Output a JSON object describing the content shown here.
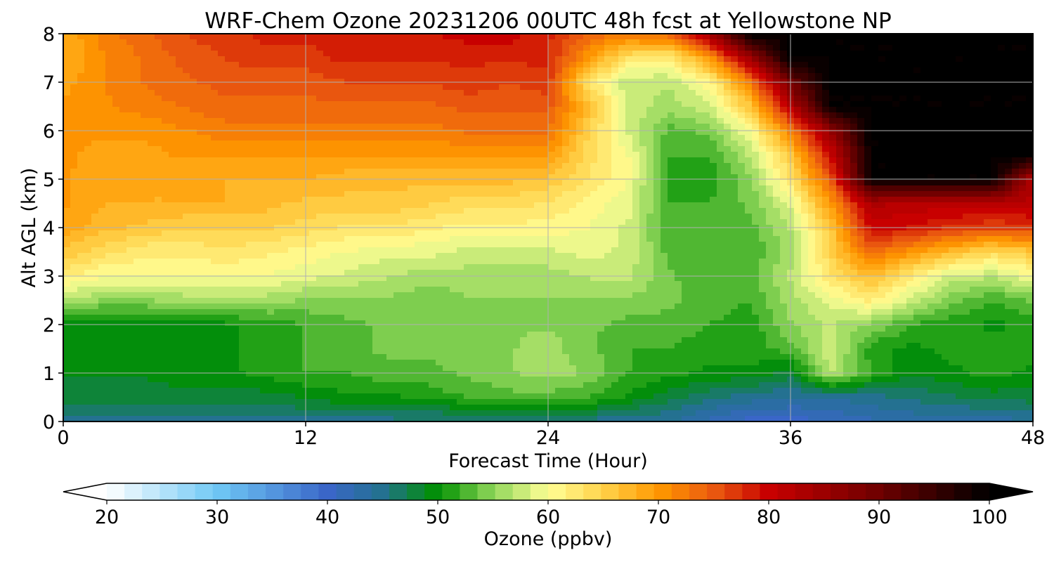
{
  "chart_data": {
    "type": "heatmap",
    "title": "WRF-Chem Ozone  20231206 00UTC 48h fcst at Yellowstone NP",
    "xlabel": "Forecast Time (Hour)",
    "ylabel": "Alt AGL (km)",
    "xlim": [
      0,
      48
    ],
    "ylim": [
      0,
      8
    ],
    "x_ticks": [
      0,
      12,
      24,
      36,
      48
    ],
    "x_tick_labels": [
      "0",
      "12",
      "24",
      "36",
      "48"
    ],
    "y_ticks": [
      0,
      1,
      2,
      3,
      4,
      5,
      6,
      7,
      8
    ],
    "y_tick_labels": [
      "0",
      "1",
      "2",
      "3",
      "4",
      "5",
      "6",
      "7",
      "8"
    ],
    "grid": true,
    "z_hours": [
      0,
      2,
      4,
      6,
      8,
      10,
      12,
      14,
      16,
      18,
      20,
      22,
      24,
      26,
      28,
      30,
      32,
      34,
      36,
      38,
      40,
      42,
      44,
      46,
      48
    ],
    "z_altitudes_km": [
      0,
      0.5,
      1,
      1.5,
      2,
      2.5,
      3,
      3.5,
      4,
      4.5,
      5,
      5.5,
      6,
      6.5,
      7,
      7.5,
      8
    ],
    "z_values_ppbv": [
      [
        45,
        45,
        45,
        45,
        45,
        45,
        45,
        45,
        45,
        45,
        45,
        45,
        45,
        45,
        44,
        44,
        42,
        40,
        40,
        41,
        42,
        43,
        43,
        43,
        44
      ],
      [
        48,
        48,
        48,
        48,
        48,
        48,
        49,
        50,
        50,
        51,
        52,
        53,
        53,
        52,
        50,
        48,
        46,
        45,
        44,
        44,
        45,
        46,
        47,
        48,
        48
      ],
      [
        49,
        49,
        49,
        50,
        50,
        51,
        52,
        52,
        53,
        53,
        54,
        55,
        56,
        55,
        52,
        51,
        50,
        50,
        48,
        57,
        52,
        49,
        50,
        51,
        50
      ],
      [
        49,
        49,
        49,
        50,
        50,
        51,
        52,
        53,
        54,
        54,
        55,
        55,
        56,
        54,
        52,
        52,
        51,
        51,
        53,
        58,
        51,
        50,
        51,
        51,
        51
      ],
      [
        50,
        49,
        49,
        50,
        50,
        51,
        52,
        53,
        54,
        54,
        55,
        55,
        55,
        54,
        53,
        53,
        52,
        51,
        55,
        57,
        55,
        52,
        51,
        50,
        51
      ],
      [
        57,
        55,
        55,
        56,
        56,
        56,
        55,
        55,
        55,
        54,
        55,
        55,
        55,
        55,
        55,
        54,
        53,
        52,
        56,
        59,
        62,
        58,
        54,
        52,
        54
      ],
      [
        62,
        60,
        60,
        60,
        60,
        60,
        59,
        58,
        57,
        56,
        56,
        56,
        56,
        57,
        57,
        54,
        52,
        53,
        57,
        63,
        67,
        62,
        58,
        57,
        60
      ],
      [
        66,
        64,
        62,
        62,
        63,
        62,
        61,
        60,
        59,
        59,
        58,
        58,
        58,
        59,
        58,
        53,
        52,
        52,
        56,
        65,
        74,
        70,
        67,
        64,
        66
      ],
      [
        69,
        67,
        66,
        65,
        65,
        65,
        64,
        63,
        63,
        62,
        61,
        61,
        61,
        60,
        58,
        52,
        52,
        53,
        57,
        66,
        80,
        79,
        77,
        76,
        77
      ],
      [
        70,
        68,
        68,
        68,
        68,
        67,
        66,
        66,
        66,
        65,
        64,
        64,
        63,
        61,
        59,
        52,
        52,
        54,
        59,
        70,
        83,
        82,
        82,
        82,
        82
      ],
      [
        70,
        68,
        68,
        68,
        68,
        68,
        68,
        67,
        67,
        67,
        67,
        67,
        66,
        63,
        60,
        51,
        51,
        55,
        63,
        75,
        100,
        100,
        100,
        100,
        82
      ],
      [
        70,
        69,
        69,
        70,
        70,
        70,
        70,
        70,
        70,
        70,
        70,
        70,
        70,
        64,
        60,
        52,
        52,
        57,
        66,
        80,
        100,
        100,
        100,
        100,
        100
      ],
      [
        70,
        70,
        70,
        71,
        72,
        72,
        72,
        72,
        72,
        72,
        73,
        73,
        73,
        65,
        58,
        53,
        54,
        60,
        72,
        86,
        100,
        100,
        100,
        100,
        100
      ],
      [
        70,
        71,
        72,
        73,
        74,
        74,
        74,
        74,
        74,
        74,
        75,
        75,
        75,
        67,
        58,
        56,
        58,
        66,
        82,
        100,
        100,
        100,
        100,
        100,
        100
      ],
      [
        69,
        71,
        73,
        74,
        75,
        75,
        75,
        76,
        76,
        76,
        77,
        76,
        77,
        63,
        57,
        57,
        61,
        72,
        90,
        100,
        100,
        100,
        100,
        100,
        100
      ],
      [
        68,
        71,
        73,
        75,
        76,
        77,
        77,
        78,
        78,
        78,
        78,
        78,
        78,
        70,
        63,
        62,
        70,
        85,
        100,
        100,
        100,
        100,
        100,
        100,
        100
      ],
      [
        68,
        72,
        74,
        76,
        77,
        78,
        78,
        79,
        79,
        79,
        80,
        80,
        78,
        74,
        73,
        74,
        85,
        100,
        100,
        100,
        100,
        100,
        100,
        100,
        100
      ]
    ],
    "colorbar": {
      "label": "Ozone  (ppbv)",
      "min": 20,
      "max": 100,
      "ticks": [
        20,
        30,
        40,
        50,
        60,
        70,
        80,
        90,
        100
      ],
      "tick_labels": [
        "20",
        "30",
        "40",
        "50",
        "60",
        "70",
        "80",
        "90",
        "100"
      ],
      "extend": "both",
      "stops": [
        {
          "value": 20,
          "color": "#ffffff"
        },
        {
          "value": 30,
          "color": "#6fc8f5"
        },
        {
          "value": 40,
          "color": "#3a66c8"
        },
        {
          "value": 45,
          "color": "#23718f"
        },
        {
          "value": 50,
          "color": "#009000"
        },
        {
          "value": 55,
          "color": "#8fd65a"
        },
        {
          "value": 60,
          "color": "#ffff96"
        },
        {
          "value": 65,
          "color": "#ffd24a"
        },
        {
          "value": 70,
          "color": "#ff9800"
        },
        {
          "value": 75,
          "color": "#ea5a10"
        },
        {
          "value": 80,
          "color": "#c80000"
        },
        {
          "value": 90,
          "color": "#6e0000"
        },
        {
          "value": 100,
          "color": "#000000"
        }
      ]
    }
  }
}
